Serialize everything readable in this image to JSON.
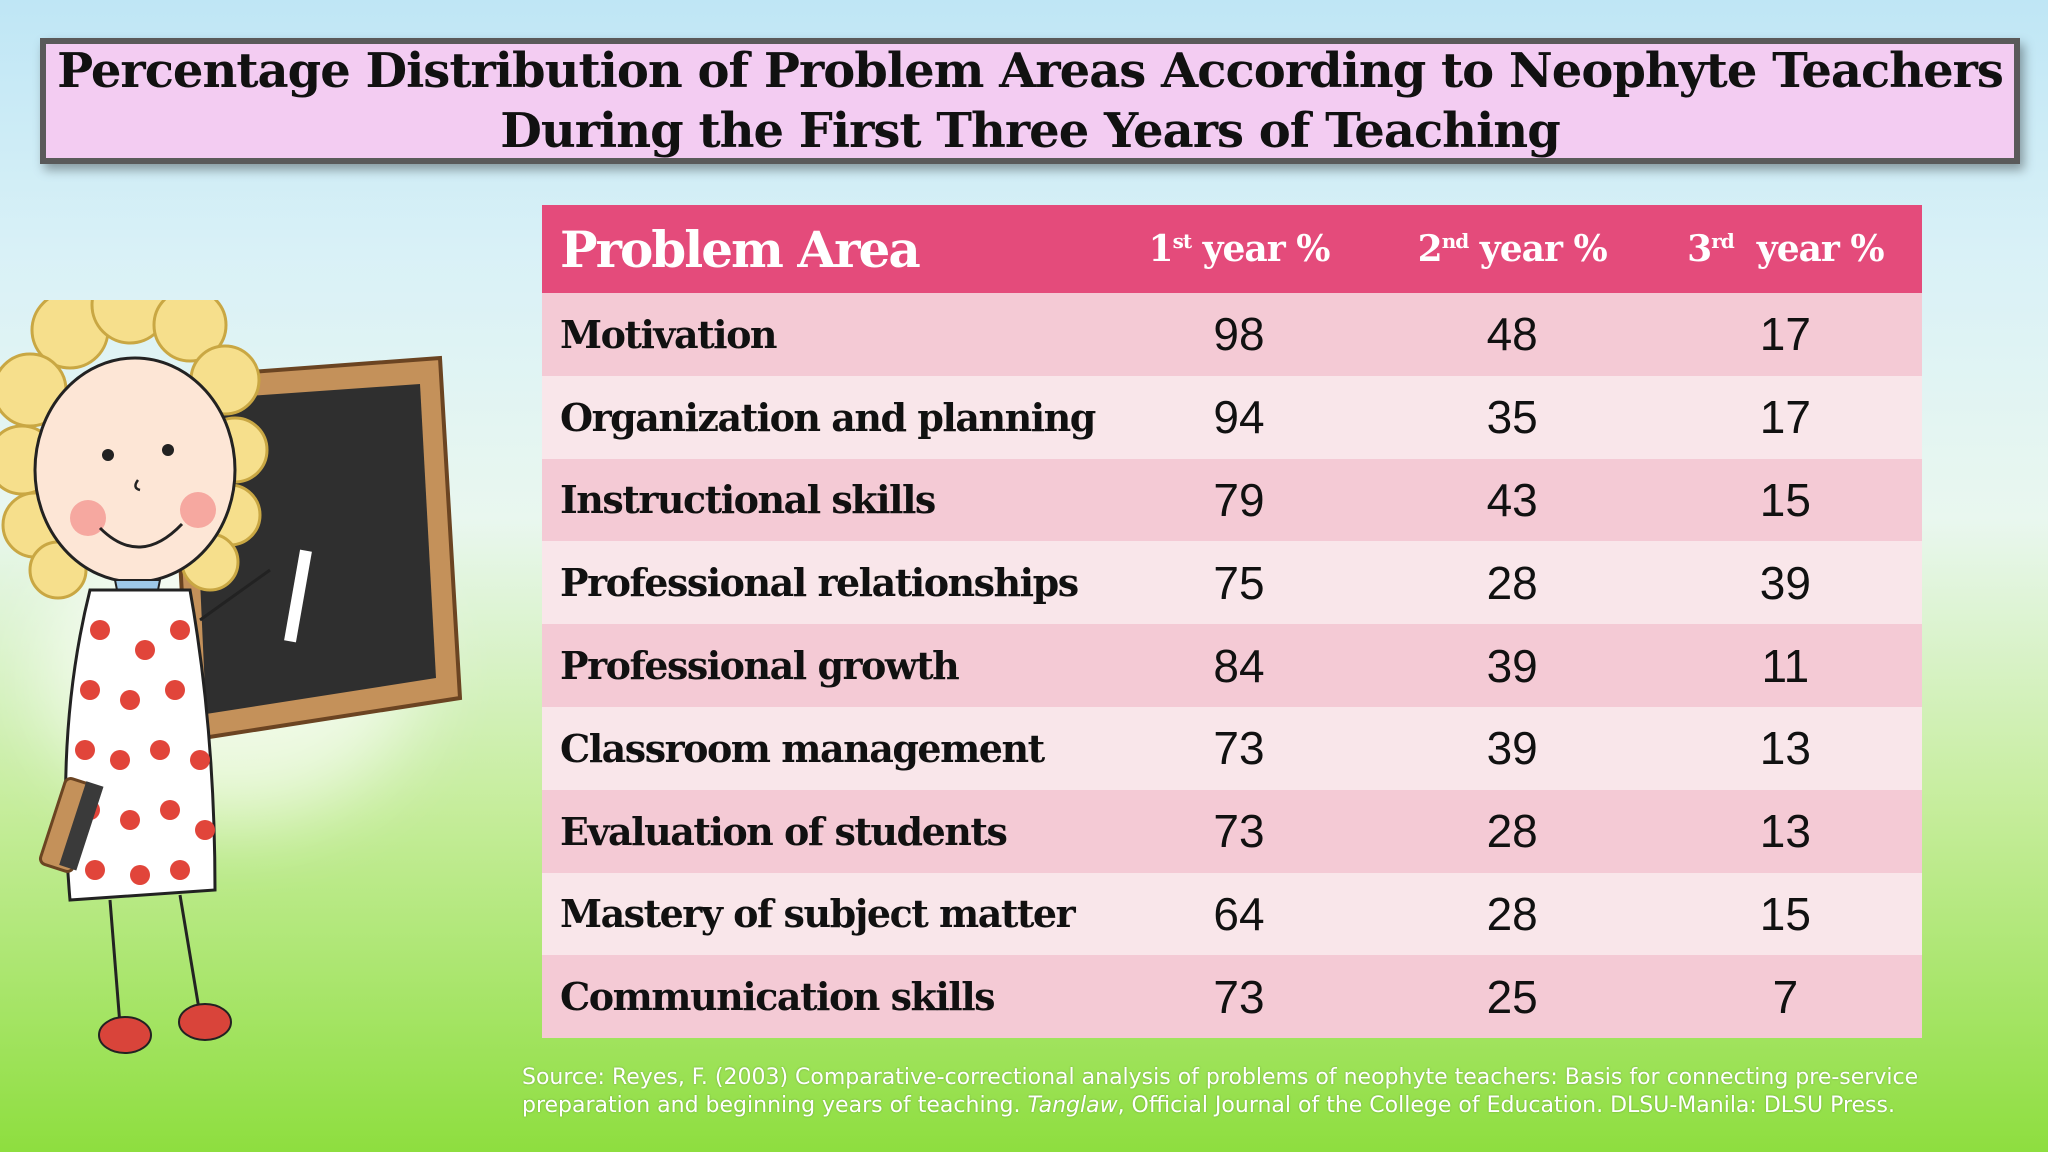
{
  "title": {
    "line1": "Percentage Distribution of Problem Areas According to Neophyte Teachers",
    "line2": "During the First Three Years of Teaching"
  },
  "table": {
    "header": {
      "area": "Problem Area",
      "y1_num": "1",
      "y1_sup": "st",
      "y1_rest": " year %",
      "y2_num": "2",
      "y2_sup": "nd",
      "y2_rest": " year %",
      "y3_num": "3",
      "y3_sup": "rd",
      "y3_rest": "  year %"
    },
    "rows": [
      {
        "area": "Motivation",
        "y1": "98",
        "y2": "48",
        "y3": "17"
      },
      {
        "area": "Organization and planning",
        "y1": "94",
        "y2": "35",
        "y3": "17"
      },
      {
        "area": "Instructional skills",
        "y1": "79",
        "y2": "43",
        "y3": "15"
      },
      {
        "area": "Professional relationships",
        "y1": "75",
        "y2": "28",
        "y3": "39"
      },
      {
        "area": "Professional growth",
        "y1": "84",
        "y2": "39",
        "y3": "11"
      },
      {
        "area": "Classroom management",
        "y1": "73",
        "y2": "39",
        "y3": "13"
      },
      {
        "area": "Evaluation of students",
        "y1": "73",
        "y2": "28",
        "y3": "13"
      },
      {
        "area": "Mastery of subject matter",
        "y1": "64",
        "y2": "28",
        "y3": "15"
      },
      {
        "area": "Communication skills",
        "y1": "73",
        "y2": "25",
        "y3": "7"
      }
    ]
  },
  "source": {
    "part1": "Source: Reyes, F. (2003) Comparative-correctional analysis of problems of neophyte teachers: Basis for connecting pre-service preparation and beginning years of teaching. ",
    "journal": "Tanglaw",
    "part2": ", Official Journal of the College of Education. DLSU-Manila: DLSU Press."
  },
  "illustration": {
    "figure": "teacher-girl-illustration",
    "board": "chalkboard-icon",
    "tool": "eraser-icon"
  },
  "colors": {
    "header_bg": "#e44b7b",
    "row_odd": "#f4cad5",
    "row_even": "#f9e6ea",
    "title_bg": "#f3ccf2"
  }
}
